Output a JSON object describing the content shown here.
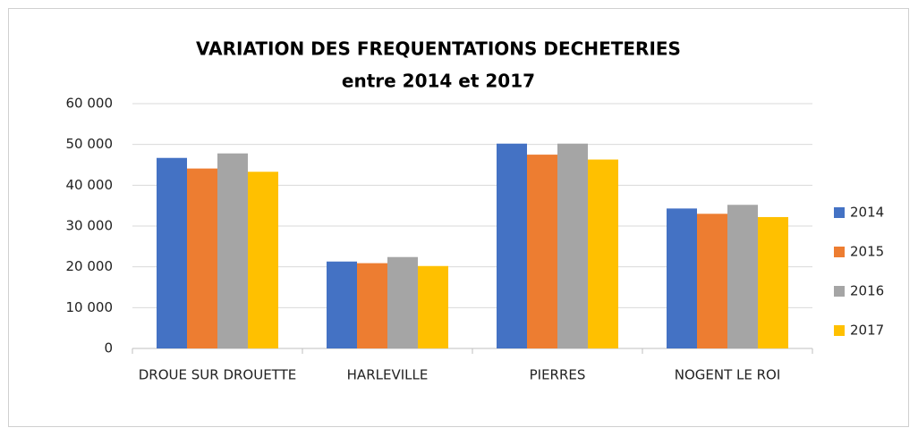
{
  "chart_data": {
    "type": "bar",
    "title_lines": [
      "VARIATION DES FREQUENTATIONS DECHETERIES",
      "entre 2014 et 2017"
    ],
    "categories": [
      "DROUE SUR DROUETTE",
      "HARLEVILLE",
      "PIERRES",
      "NOGENT LE ROI"
    ],
    "series": [
      {
        "name": "2014",
        "color": "#4472c4",
        "values": [
          46700,
          21300,
          50200,
          34300
        ]
      },
      {
        "name": "2015",
        "color": "#ed7d31",
        "values": [
          44100,
          20900,
          47500,
          33000
        ]
      },
      {
        "name": "2016",
        "color": "#a5a5a5",
        "values": [
          47800,
          22400,
          50200,
          35200
        ]
      },
      {
        "name": "2017",
        "color": "#ffc000",
        "values": [
          43300,
          20200,
          46300,
          32200
        ]
      }
    ],
    "ylim": [
      0,
      60000
    ],
    "yticks": [
      0,
      {
        "value": 10000,
        "label": "10 000"
      },
      {
        "value": 20000,
        "label": "20 000"
      },
      {
        "value": 30000,
        "label": "30 000"
      },
      {
        "value": 40000,
        "label": "40 000"
      },
      {
        "value": 50000,
        "label": "50 000"
      },
      {
        "value": 60000,
        "label": "60 000"
      }
    ],
    "grid": true,
    "legend": "right"
  }
}
